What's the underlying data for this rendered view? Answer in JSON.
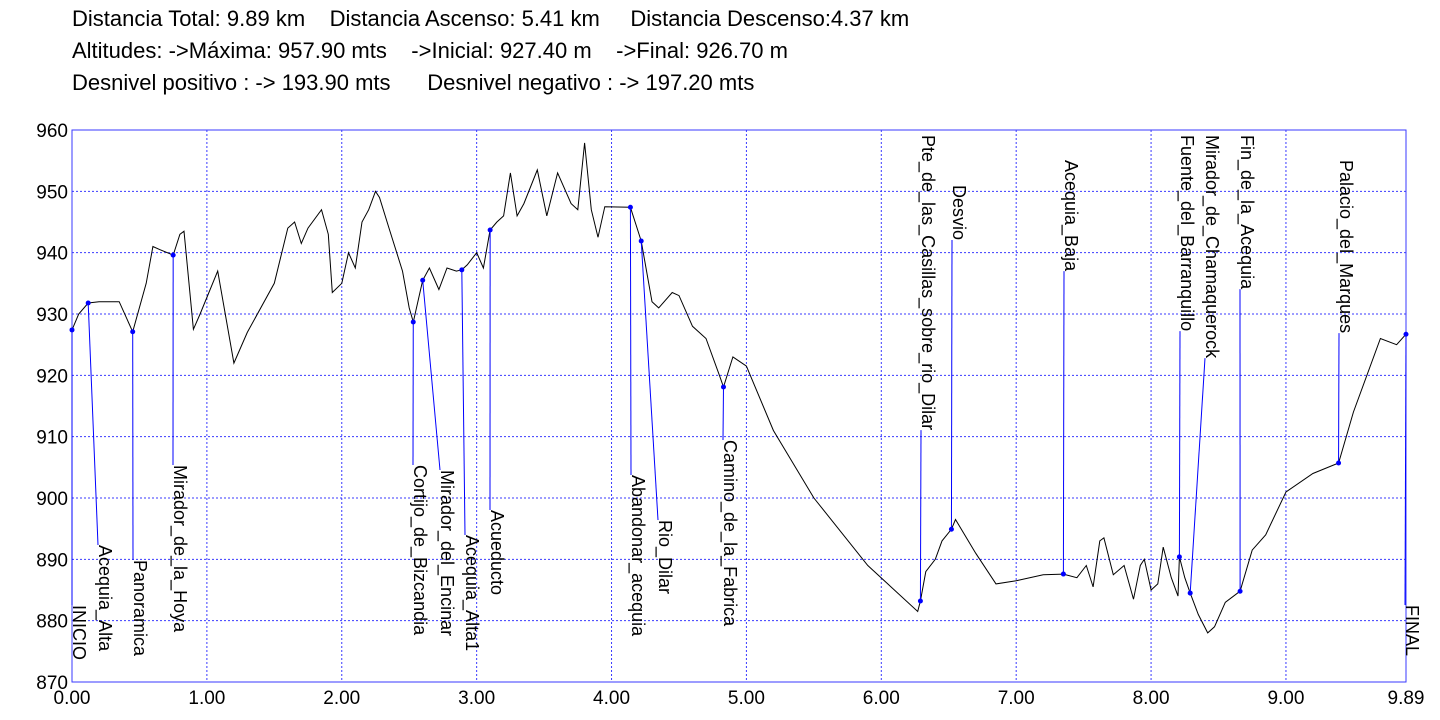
{
  "chart_data": {
    "type": "line",
    "summary": [
      "Distancia Total: 9.89 km    Distancia Ascenso: 5.41 km     Distancia Descenso:4.37 km",
      "Altitudes: ->Máxima: 957.90 mts    ->Inicial: 927.40 m    ->Final: 926.70 m",
      "Desnivel positivo : -> 193.90 mts      Desnivel negativo : -> 197.20 mts"
    ],
    "x": [
      0,
      0.05,
      0.12,
      0.2,
      0.35,
      0.45,
      0.55,
      0.6,
      0.65,
      0.75,
      0.8,
      0.83,
      0.9,
      0.95,
      1.08,
      1.2,
      1.3,
      1.5,
      1.6,
      1.65,
      1.7,
      1.75,
      1.85,
      1.9,
      1.93,
      2.0,
      2.05,
      2.1,
      2.15,
      2.2,
      2.25,
      2.28,
      2.35,
      2.45,
      2.5,
      2.53,
      2.6,
      2.65,
      2.72,
      2.78,
      2.85,
      2.89,
      2.93,
      3.0,
      3.05,
      3.1,
      3.15,
      3.2,
      3.25,
      3.3,
      3.35,
      3.45,
      3.52,
      3.6,
      3.7,
      3.75,
      3.8,
      3.85,
      3.9,
      3.95,
      4.14,
      4.22,
      4.3,
      4.35,
      4.45,
      4.5,
      4.6,
      4.7,
      4.8,
      4.83,
      4.9,
      5.0,
      5.2,
      5.5,
      5.9,
      6.27,
      6.29,
      6.33,
      6.4,
      6.45,
      6.52,
      6.55,
      6.7,
      6.85,
      7.0,
      7.2,
      7.35,
      7.45,
      7.52,
      7.57,
      7.62,
      7.65,
      7.72,
      7.8,
      7.87,
      7.92,
      7.95,
      8.0,
      8.05,
      8.09,
      8.15,
      8.2,
      8.21,
      8.25,
      8.29,
      8.35,
      8.42,
      8.47,
      8.55,
      8.66,
      8.75,
      8.85,
      9.0,
      9.2,
      9.39,
      9.5,
      9.7,
      9.82,
      9.89
    ],
    "values": [
      927.4,
      930,
      931.8,
      932,
      932,
      927.1,
      935,
      941,
      940.5,
      939.6,
      943,
      943.5,
      927.5,
      930,
      937,
      922,
      927,
      935,
      944,
      945,
      941.5,
      944,
      947,
      943,
      933.5,
      935,
      940,
      937.5,
      945,
      947,
      950,
      949,
      944,
      937,
      931,
      928.7,
      935.5,
      937.5,
      934,
      937.5,
      937,
      937.2,
      938,
      940,
      937.5,
      943.7,
      945,
      946,
      953,
      946,
      948,
      953.5,
      946,
      953,
      948,
      947,
      957.9,
      947,
      942.5,
      947.5,
      947.4,
      941.9,
      932,
      931,
      933.5,
      933,
      928,
      926,
      920,
      918.1,
      923,
      921.5,
      911,
      900,
      889,
      881.5,
      883.2,
      888,
      890,
      893,
      894.9,
      896.5,
      891,
      886,
      886.5,
      887.5,
      887.6,
      887,
      889,
      885.5,
      893,
      893.5,
      887.5,
      889,
      883.5,
      889,
      890,
      885,
      886,
      892,
      887,
      884,
      890.4,
      887,
      884.5,
      881,
      878,
      879,
      883,
      884.8,
      891.5,
      894,
      901,
      904,
      905.7,
      914,
      926,
      925,
      926.7
    ],
    "color": "#000000",
    "annotations": [
      {
        "label": "INICIO",
        "x": 0,
        "y": 927.4
      },
      {
        "label": "Acequia_Alta",
        "x": 0.12,
        "y": 931.8
      },
      {
        "label": "Panoramica",
        "x": 0.45,
        "y": 927.1
      },
      {
        "label": "Mirador_de_la_Hoya",
        "x": 0.75,
        "y": 939.6
      },
      {
        "label": "Cortijo_de_Bizcandia",
        "x": 2.53,
        "y": 928.7
      },
      {
        "label": "Mirador_del_Encinar",
        "x": 2.6,
        "y": 935.5
      },
      {
        "label": "Acequia_Alta1",
        "x": 2.89,
        "y": 937.2
      },
      {
        "label": "Acueducto",
        "x": 3.1,
        "y": 943.7
      },
      {
        "label": "Abandonar_acequia",
        "x": 4.14,
        "y": 947.4
      },
      {
        "label": "Rio_Dilar",
        "x": 4.22,
        "y": 941.9
      },
      {
        "label": "Camino_de_la_Fabrica",
        "x": 4.83,
        "y": 918.1
      },
      {
        "label": "Pte_de_las_Casillas_sobre_rio_Dilar",
        "x": 6.29,
        "y": 883.2
      },
      {
        "label": "Desvio",
        "x": 6.52,
        "y": 894.9
      },
      {
        "label": "Acequia_Baja",
        "x": 7.35,
        "y": 887.6
      },
      {
        "label": "Fuente_del_Barranquillo",
        "x": 8.21,
        "y": 890.4
      },
      {
        "label": "Mirador_de_Chamaquerock",
        "x": 8.29,
        "y": 884.5
      },
      {
        "label": "Fin_de_la_Acequia",
        "x": 8.66,
        "y": 884.8
      },
      {
        "label": "Palacio_del_Marques",
        "x": 9.39,
        "y": 905.7
      },
      {
        "label": "FINAL",
        "x": 9.89,
        "y": 926.7
      }
    ],
    "annotation_color": "#0000ff",
    "xlim": [
      0,
      9.89
    ],
    "ylim": [
      870,
      960
    ],
    "xticks": [
      {
        "value": 0,
        "label": "0.00"
      },
      {
        "value": 1,
        "label": "1.00"
      },
      {
        "value": 2,
        "label": "2.00"
      },
      {
        "value": 3,
        "label": "3.00"
      },
      {
        "value": 4,
        "label": "4.00"
      },
      {
        "value": 5,
        "label": "5.00"
      },
      {
        "value": 6,
        "label": "6.00"
      },
      {
        "value": 7,
        "label": "7.00"
      },
      {
        "value": 8,
        "label": "8.00"
      },
      {
        "value": 9,
        "label": "9.00"
      },
      {
        "value": 9.89,
        "label": "9.89"
      }
    ],
    "yticks": [
      870,
      880,
      890,
      900,
      910,
      920,
      930,
      940,
      950,
      960
    ],
    "grid": true
  }
}
